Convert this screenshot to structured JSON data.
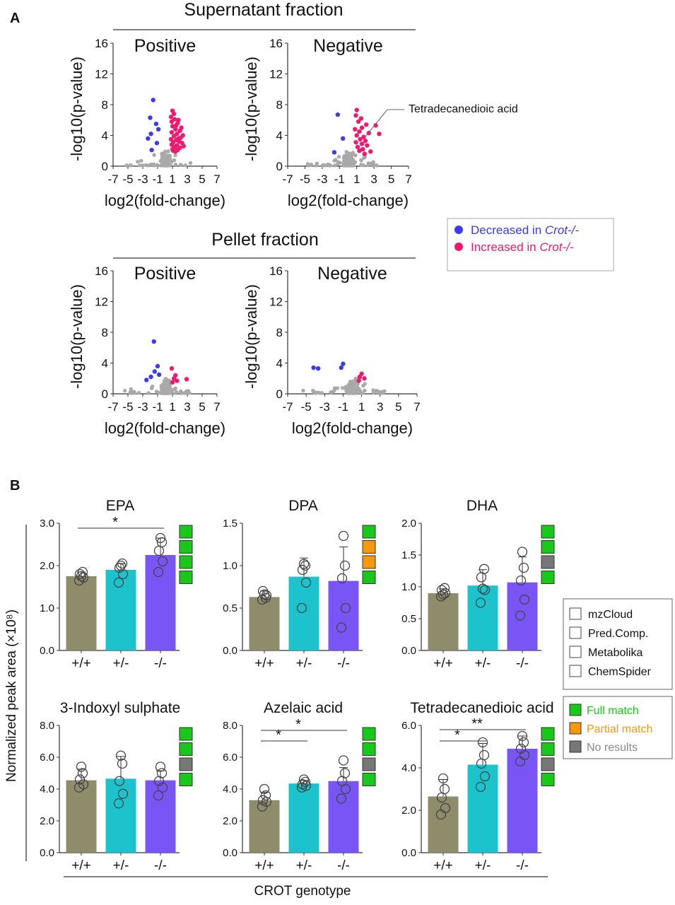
{
  "panel_labels": {
    "a": "A",
    "b": "B"
  },
  "section_a": {
    "supernatant_title": "Supernatant fraction",
    "pellet_title": "Pellet fraction",
    "annotation": "Tetradecanedioic acid",
    "legend": {
      "decreased_prefix": "Decreased in ",
      "increased_prefix": "Increased in ",
      "genotype": "Crot-/-",
      "decreased_color": "#3a3af0",
      "increased_color": "#ee1a6e",
      "neutral_color": "#a9a9a9"
    }
  },
  "section_b": {
    "ylabel": "Normalized peak area (×10⁸)",
    "xlabel": "CROT genotype",
    "bar_colors": [
      "#8f8c6c",
      "#1cc3cc",
      "#7a55f5"
    ],
    "match_legend": {
      "db_names": [
        "mzCloud",
        "Pred.Comp.",
        "Metabolika",
        "ChemSpider"
      ],
      "full": "Full match",
      "partial": "Partial match",
      "none": "No results",
      "full_color": "#19c919",
      "partial_color": "#f5980c",
      "none_color": "#777777"
    }
  },
  "chart_data": [
    {
      "type": "scatter",
      "panel": "A",
      "fraction": "Supernatant fraction",
      "title": "Positive",
      "xlabel": "log2(fold-change)",
      "ylabel": "-log10(p-value)",
      "xlim": [
        -7,
        7
      ],
      "ylim": [
        0,
        16
      ],
      "xticks": [
        "-7",
        "-5",
        "-3",
        "-1",
        "1",
        "3",
        "5",
        "7"
      ],
      "yticks": [
        "0",
        "4",
        "8",
        "12",
        "16"
      ],
      "decreased": [
        [
          -1.6,
          8.6
        ],
        [
          -2.0,
          6.3
        ],
        [
          -1.2,
          5.5
        ],
        [
          -1.9,
          4.2
        ],
        [
          -2.3,
          3.6
        ],
        [
          -1.1,
          3.0
        ],
        [
          -1.8,
          2.1
        ],
        [
          -0.9,
          4.8
        ]
      ],
      "increased": [
        [
          1.0,
          7.2
        ],
        [
          0.8,
          6.4
        ],
        [
          1.3,
          6.1
        ],
        [
          1.7,
          5.6
        ],
        [
          1.0,
          5.2
        ],
        [
          1.4,
          4.8
        ],
        [
          2.0,
          4.6
        ],
        [
          0.9,
          4.4
        ],
        [
          1.6,
          4.2
        ],
        [
          1.2,
          3.9
        ],
        [
          2.1,
          3.7
        ],
        [
          0.8,
          3.5
        ],
        [
          1.5,
          3.4
        ],
        [
          1.9,
          3.2
        ],
        [
          1.1,
          3.1
        ],
        [
          2.3,
          3.0
        ],
        [
          0.9,
          2.8
        ],
        [
          1.6,
          2.7
        ],
        [
          1.3,
          2.5
        ],
        [
          2.0,
          2.4
        ],
        [
          1.0,
          2.2
        ],
        [
          1.7,
          2.1
        ],
        [
          1.4,
          1.9
        ],
        [
          2.4,
          4.0
        ],
        [
          2.2,
          5.0
        ],
        [
          1.8,
          6.0
        ],
        [
          1.2,
          6.8
        ],
        [
          0.9,
          5.8
        ],
        [
          1.5,
          5.3
        ],
        [
          2.5,
          2.6
        ],
        [
          1.1,
          2.0
        ],
        [
          1.8,
          3.6
        ]
      ]
    },
    {
      "type": "scatter",
      "panel": "A",
      "fraction": "Supernatant fraction",
      "title": "Negative",
      "xlabel": "log2(fold-change)",
      "ylabel": "-log10(p-value)",
      "xlim": [
        -7,
        7
      ],
      "ylim": [
        0,
        16
      ],
      "xticks": [
        "-7",
        "-5",
        "-3",
        "-1",
        "1",
        "3",
        "5",
        "7"
      ],
      "yticks": [
        "0",
        "4",
        "8",
        "12",
        "16"
      ],
      "decreased": [
        [
          -1.2,
          6.7
        ],
        [
          -0.6,
          3.6
        ],
        [
          -1.6,
          1.8
        ]
      ],
      "increased": [
        [
          1.0,
          7.3
        ],
        [
          0.9,
          6.6
        ],
        [
          1.5,
          6.2
        ],
        [
          1.2,
          5.8
        ],
        [
          2.1,
          5.4
        ],
        [
          1.6,
          5.0
        ],
        [
          0.8,
          4.8
        ],
        [
          1.3,
          4.5
        ],
        [
          2.4,
          4.3
        ],
        [
          1.0,
          4.0
        ],
        [
          1.8,
          3.8
        ],
        [
          1.4,
          3.5
        ],
        [
          2.0,
          3.3
        ],
        [
          0.9,
          3.1
        ],
        [
          1.6,
          2.9
        ],
        [
          2.2,
          2.7
        ],
        [
          1.1,
          2.5
        ],
        [
          1.7,
          2.2
        ],
        [
          1.3,
          2.0
        ],
        [
          3.6,
          4.2
        ],
        [
          3.2,
          5.3
        ],
        [
          2.6,
          1.9
        ],
        [
          1.9,
          1.6
        ]
      ]
    },
    {
      "type": "scatter",
      "panel": "A",
      "fraction": "Pellet fraction",
      "title": "Positive",
      "xlabel": "log2(fold-change)",
      "ylabel": "-log10(p-value)",
      "xlim": [
        -7,
        7
      ],
      "ylim": [
        0,
        16
      ],
      "xticks": [
        "-7",
        "-5",
        "-3",
        "-1",
        "1",
        "3",
        "5",
        "7"
      ],
      "yticks": [
        "0",
        "4",
        "8",
        "12",
        "16"
      ],
      "decreased": [
        [
          -1.5,
          6.8
        ],
        [
          -1.0,
          3.6
        ],
        [
          -1.4,
          2.9
        ],
        [
          -1.9,
          2.2
        ],
        [
          -2.5,
          1.8
        ],
        [
          -0.8,
          2.5
        ]
      ],
      "increased": [
        [
          0.9,
          3.3
        ],
        [
          1.2,
          2.0
        ],
        [
          1.6,
          1.7
        ],
        [
          1.0,
          1.5
        ],
        [
          2.9,
          1.9
        ],
        [
          1.4,
          2.4
        ]
      ]
    },
    {
      "type": "scatter",
      "panel": "A",
      "fraction": "Pellet fraction",
      "title": "Negative",
      "xlabel": "log2(fold-change)",
      "ylabel": "-log10(p-value)",
      "xlim": [
        -7,
        7
      ],
      "ylim": [
        0,
        16
      ],
      "xticks": [
        "-7",
        "-5",
        "-3",
        "-1",
        "1",
        "3",
        "5",
        "7"
      ],
      "yticks": [
        "0",
        "4",
        "8",
        "12",
        "16"
      ],
      "decreased": [
        [
          -4.2,
          3.4
        ],
        [
          -3.7,
          3.3
        ],
        [
          -1.0,
          3.9
        ],
        [
          -1.2,
          3.4
        ]
      ],
      "increased": [
        [
          0.8,
          2.2
        ],
        [
          1.3,
          2.0
        ],
        [
          1.0,
          2.6
        ],
        [
          0.7,
          1.7
        ]
      ]
    },
    {
      "type": "bar",
      "panel": "B",
      "title": "EPA",
      "categories": [
        "+/+",
        "+/-",
        "-/-"
      ],
      "values": [
        1.75,
        1.9,
        2.25
      ],
      "errors": [
        0.1,
        0.15,
        0.4
      ],
      "points": [
        [
          1.65,
          1.72,
          1.8,
          1.85,
          1.75
        ],
        [
          1.6,
          1.8,
          1.95,
          2.05,
          2.0
        ],
        [
          1.85,
          2.1,
          2.35,
          2.55,
          2.65
        ]
      ],
      "ylim": [
        0,
        3.0
      ],
      "yticks": [
        "0.0",
        "1.0",
        "2.0",
        "3.0"
      ],
      "significance": [
        {
          "from": 0,
          "to": 2,
          "label": "*"
        }
      ],
      "match": [
        "full",
        "full",
        "full",
        "full"
      ]
    },
    {
      "type": "bar",
      "panel": "B",
      "title": "DPA",
      "categories": [
        "+/+",
        "+/-",
        "-/-"
      ],
      "values": [
        0.63,
        0.87,
        0.82
      ],
      "errors": [
        0.07,
        0.22,
        0.4
      ],
      "points": [
        [
          0.6,
          0.65,
          0.7,
          0.62,
          0.66
        ],
        [
          0.5,
          0.8,
          0.95,
          1.0,
          1.02
        ],
        [
          0.27,
          0.5,
          0.85,
          1.0,
          1.35
        ]
      ],
      "ylim": [
        0,
        1.5
      ],
      "yticks": [
        "0.0",
        "0.5",
        "1.0",
        "1.5"
      ],
      "significance": [],
      "match": [
        "full",
        "partial",
        "partial",
        "full"
      ]
    },
    {
      "type": "bar",
      "panel": "B",
      "title": "DHA",
      "categories": [
        "+/+",
        "+/-",
        "-/-"
      ],
      "values": [
        0.9,
        1.02,
        1.07
      ],
      "errors": [
        0.07,
        0.25,
        0.4
      ],
      "points": [
        [
          0.85,
          0.9,
          0.95,
          0.98,
          0.88
        ],
        [
          0.75,
          0.95,
          1.15,
          1.28,
          0.97
        ],
        [
          0.55,
          0.8,
          1.1,
          1.3,
          1.55
        ]
      ],
      "ylim": [
        0,
        2.0
      ],
      "yticks": [
        "0.0",
        "0.5",
        "1.0",
        "1.5",
        "2.0"
      ],
      "significance": [],
      "match": [
        "full",
        "full",
        "none",
        "full"
      ]
    },
    {
      "type": "bar",
      "panel": "B",
      "title": "3-Indoxyl sulphate",
      "categories": [
        "+/+",
        "+/-",
        "-/-"
      ],
      "values": [
        4.55,
        4.65,
        4.55
      ],
      "errors": [
        0.7,
        1.4,
        0.6
      ],
      "points": [
        [
          4.1,
          4.3,
          4.6,
          5.0,
          5.4
        ],
        [
          3.1,
          3.7,
          4.5,
          5.6,
          6.1
        ],
        [
          3.6,
          4.1,
          4.5,
          5.0,
          5.4
        ]
      ],
      "ylim": [
        0,
        8.0
      ],
      "yticks": [
        "0.0",
        "2.0",
        "4.0",
        "6.0",
        "8.0"
      ],
      "significance": [],
      "match": [
        "full",
        "full",
        "none",
        "full"
      ]
    },
    {
      "type": "bar",
      "panel": "B",
      "title": "Azelaic acid",
      "categories": [
        "+/+",
        "+/-",
        "-/-"
      ],
      "values": [
        3.3,
        4.35,
        4.5
      ],
      "errors": [
        0.5,
        0.2,
        0.85
      ],
      "points": [
        [
          2.9,
          3.2,
          3.3,
          3.6,
          4.0
        ],
        [
          4.1,
          4.2,
          4.3,
          4.45,
          4.6
        ],
        [
          3.4,
          4.0,
          4.5,
          5.0,
          5.8
        ]
      ],
      "ylim": [
        0,
        8.0
      ],
      "yticks": [
        "0.0",
        "2.0",
        "4.0",
        "6.0",
        "8.0"
      ],
      "significance": [
        {
          "from": 0,
          "to": 1,
          "label": "*"
        },
        {
          "from": 0,
          "to": 2,
          "label": "*"
        }
      ],
      "match": [
        "full",
        "full",
        "none",
        "full"
      ]
    },
    {
      "type": "bar",
      "panel": "B",
      "title": "Tetradecanedioic acid",
      "categories": [
        "+/+",
        "+/-",
        "-/-"
      ],
      "values": [
        2.65,
        4.15,
        4.9
      ],
      "errors": [
        0.8,
        1.0,
        0.6
      ],
      "points": [
        [
          1.8,
          2.1,
          2.6,
          3.0,
          3.5
        ],
        [
          3.1,
          3.6,
          4.2,
          4.6,
          5.2
        ],
        [
          4.3,
          4.6,
          4.9,
          5.2,
          5.5
        ]
      ],
      "ylim": [
        0,
        6.0
      ],
      "yticks": [
        "0.0",
        "2.0",
        "4.0",
        "6.0"
      ],
      "significance": [
        {
          "from": 0,
          "to": 1,
          "label": "*"
        },
        {
          "from": 0,
          "to": 2,
          "label": "**"
        }
      ],
      "match": [
        "full",
        "full",
        "none",
        "full"
      ]
    }
  ]
}
